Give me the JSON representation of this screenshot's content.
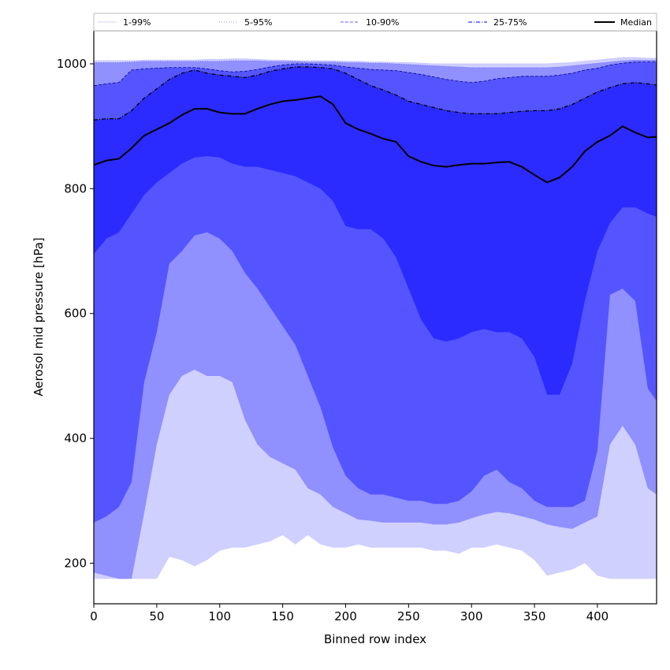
{
  "chart_data": {
    "type": "area",
    "title": "",
    "xlabel": "Binned row index",
    "ylabel": "Aerosol mid pressure [hPa]",
    "xlim": [
      0,
      447
    ],
    "ylim": [
      135,
      1053
    ],
    "x_ticks": [
      0,
      50,
      100,
      150,
      200,
      250,
      300,
      350,
      400
    ],
    "y_ticks": [
      200,
      400,
      600,
      800,
      1000
    ],
    "grid": false,
    "legend_position": "top",
    "x": [
      0,
      10,
      20,
      30,
      40,
      50,
      60,
      70,
      80,
      90,
      100,
      110,
      120,
      130,
      140,
      150,
      160,
      170,
      180,
      190,
      200,
      210,
      220,
      230,
      240,
      250,
      260,
      270,
      280,
      290,
      300,
      310,
      320,
      330,
      340,
      350,
      360,
      370,
      380,
      390,
      400,
      410,
      420,
      430,
      440,
      447
    ],
    "series": [
      {
        "name": "1-99%",
        "color": "#d0d0ff",
        "line_style": "solid",
        "lower": [
          175,
          175,
          175,
          175,
          175,
          175,
          210,
          205,
          195,
          205,
          220,
          225,
          225,
          230,
          235,
          245,
          230,
          245,
          230,
          225,
          225,
          230,
          225,
          225,
          225,
          225,
          225,
          220,
          220,
          215,
          225,
          225,
          230,
          225,
          220,
          205,
          180,
          185,
          190,
          200,
          180,
          175,
          175,
          175,
          175,
          175
        ],
        "upper": [
          1005,
          1005,
          1005,
          1005,
          1006,
          1006,
          1006,
          1006,
          1006,
          1007,
          1007,
          1008,
          1008,
          1007,
          1006,
          1006,
          1005,
          1005,
          1005,
          1005,
          1004,
          1004,
          1003,
          1003,
          1002,
          1002,
          1001,
          1000,
          1000,
          1000,
          1000,
          1000,
          1000,
          1000,
          1000,
          1000,
          1000,
          1001,
          1002,
          1004,
          1006,
          1008,
          1010,
          1010,
          1009,
          1009
        ]
      },
      {
        "name": "5-95%",
        "color": "#9090ff",
        "line_style": "dotted",
        "lower": [
          185,
          180,
          175,
          175,
          280,
          390,
          470,
          500,
          510,
          500,
          500,
          490,
          430,
          390,
          370,
          360,
          350,
          320,
          310,
          290,
          280,
          270,
          268,
          265,
          265,
          265,
          265,
          262,
          262,
          265,
          272,
          278,
          282,
          280,
          275,
          270,
          262,
          258,
          255,
          265,
          275,
          390,
          420,
          390,
          320,
          310
        ],
        "upper": [
          1002,
          1002,
          1002,
          1003,
          1004,
          1004,
          1004,
          1004,
          1004,
          1004,
          1004,
          1005,
          1005,
          1005,
          1004,
          1004,
          1004,
          1003,
          1003,
          1003,
          1002,
          1002,
          1001,
          1001,
          1000,
          999,
          998,
          997,
          996,
          995,
          994,
          994,
          994,
          994,
          994,
          994,
          994,
          995,
          997,
          999,
          1001,
          1003,
          1005,
          1006,
          1006,
          1006
        ]
      },
      {
        "name": "10-90%",
        "color": "#5555ff",
        "line_style": "dashed",
        "lower": [
          265,
          275,
          290,
          330,
          490,
          570,
          680,
          700,
          725,
          730,
          720,
          700,
          665,
          640,
          610,
          580,
          550,
          500,
          450,
          385,
          340,
          320,
          310,
          310,
          305,
          300,
          300,
          295,
          295,
          300,
          315,
          340,
          350,
          330,
          320,
          300,
          290,
          290,
          290,
          300,
          380,
          630,
          640,
          620,
          480,
          460
        ],
        "upper": [
          965,
          968,
          970,
          990,
          992,
          993,
          994,
          994,
          994,
          992,
          989,
          987,
          988,
          991,
          995,
          998,
          1000,
          1000,
          999,
          998,
          995,
          993,
          991,
          990,
          989,
          986,
          983,
          979,
          975,
          972,
          970,
          972,
          976,
          978,
          980,
          980,
          980,
          982,
          985,
          990,
          993,
          998,
          1001,
          1003,
          1003,
          1003
        ]
      },
      {
        "name": "25-75%",
        "color": "#2b2bff",
        "line_style": "dashdot",
        "lower": [
          695,
          720,
          730,
          760,
          790,
          810,
          825,
          840,
          850,
          852,
          850,
          840,
          835,
          835,
          830,
          825,
          820,
          810,
          800,
          780,
          740,
          735,
          735,
          720,
          690,
          640,
          590,
          560,
          555,
          560,
          570,
          575,
          570,
          570,
          560,
          530,
          470,
          470,
          520,
          620,
          700,
          745,
          770,
          770,
          760,
          755
        ],
        "upper": [
          910,
          912,
          912,
          925,
          945,
          960,
          975,
          985,
          990,
          985,
          982,
          980,
          978,
          982,
          988,
          992,
          995,
          995,
          994,
          992,
          985,
          975,
          965,
          958,
          950,
          940,
          935,
          930,
          925,
          922,
          920,
          920,
          920,
          922,
          924,
          925,
          925,
          928,
          935,
          945,
          955,
          962,
          968,
          970,
          968,
          966
        ]
      },
      {
        "name": "Median",
        "color": "#000000",
        "line_style": "solid",
        "values": [
          838,
          845,
          848,
          865,
          885,
          895,
          905,
          918,
          928,
          928,
          922,
          920,
          920,
          928,
          935,
          940,
          942,
          945,
          948,
          935,
          905,
          895,
          888,
          880,
          875,
          852,
          843,
          837,
          835,
          838,
          840,
          840,
          842,
          843,
          835,
          822,
          810,
          818,
          835,
          860,
          875,
          885,
          900,
          890,
          882,
          883
        ]
      }
    ]
  }
}
